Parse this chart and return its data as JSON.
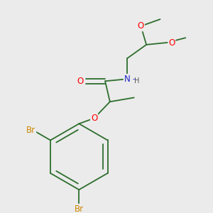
{
  "background_color": "#ebebeb",
  "bond_color": "#2d6e2d",
  "atom_colors": {
    "O": "#ff0000",
    "N": "#2020cc",
    "Br": "#cc8800",
    "C": "#000000",
    "H": "#555555"
  },
  "font_size_atom": 8.5,
  "font_size_small": 7.0,
  "figsize": [
    3.0,
    3.0
  ],
  "dpi": 100
}
